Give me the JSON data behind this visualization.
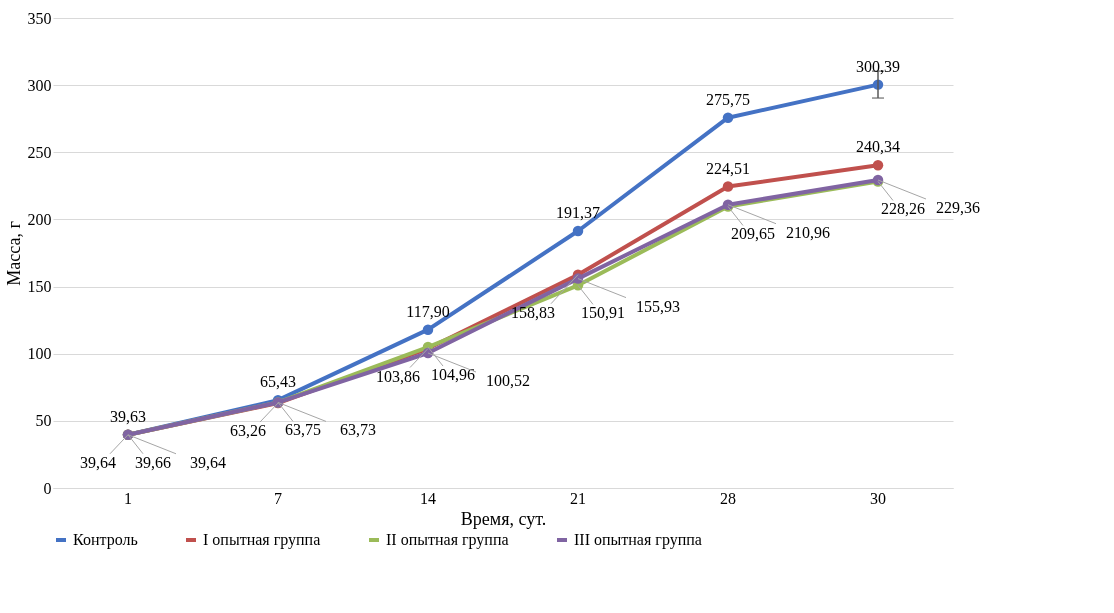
{
  "chart_data": {
    "type": "line",
    "xlabel": "Время, сут.",
    "ylabel": "Масса, г",
    "categories": [
      "1",
      "7",
      "14",
      "21",
      "28",
      "30"
    ],
    "series": [
      {
        "name": "Контроль",
        "color": "#4472c4",
        "values": [
          39.63,
          65.43,
          117.9,
          191.37,
          275.75,
          300.39
        ],
        "value_labels": [
          "39,63",
          "65,43",
          "117,90",
          "191,37",
          "275,75",
          "300,39"
        ],
        "errors": [
          null,
          null,
          null,
          null,
          null,
          10
        ]
      },
      {
        "name": "I опытная группа",
        "color": "#c0504d",
        "values": [
          39.64,
          63.26,
          103.86,
          158.83,
          224.51,
          240.34
        ],
        "value_labels": [
          "39,64",
          "63,26",
          "103,86",
          "158,83",
          "224,51",
          "240,34"
        ]
      },
      {
        "name": "II опытная группа",
        "color": "#9bbb59",
        "values": [
          39.66,
          63.75,
          104.96,
          150.91,
          209.65,
          228.26
        ],
        "value_labels": [
          "39,66",
          "63,75",
          "104,96",
          "150,91",
          "209,65",
          "228,26"
        ]
      },
      {
        "name": "III опытная группа",
        "color": "#8064a2",
        "values": [
          39.64,
          63.73,
          100.52,
          155.93,
          210.96,
          229.36
        ],
        "value_labels": [
          "39,64",
          "63,73",
          "100,52",
          "155,93",
          "210,96",
          "229,36"
        ]
      }
    ],
    "ylim": [
      0,
      350
    ],
    "yticks": [
      0,
      50,
      100,
      150,
      200,
      250,
      300,
      350
    ],
    "grid": "y",
    "legend": "bottom",
    "marker": "circle",
    "line_style": "solid"
  }
}
